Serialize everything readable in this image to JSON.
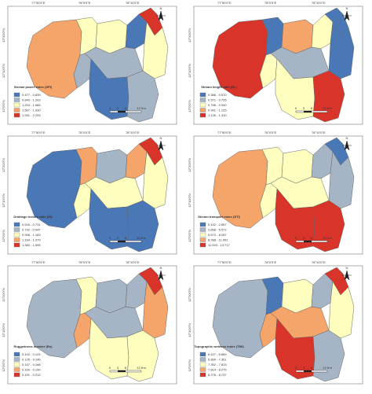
{
  "graticule": {
    "top": [
      "77°50'0\"E",
      "78°0'0\"E",
      "78°10'0\"E"
    ],
    "left": [
      "12°20'0\"N",
      "12°10'0\"N",
      "12°0'0\"N"
    ]
  },
  "scale_bar": [
    "0",
    "3",
    "6",
    "12 Km"
  ],
  "north": "N",
  "panels": [
    {
      "title": "Stream power index (SPI)",
      "legend": [
        "0.477 - 0.839",
        "0.840 - 1.203",
        "1.204 - 1.566",
        "1.567 - 1.930",
        "1.931 - 2.293"
      ],
      "classes": [
        3,
        2,
        1,
        2,
        0,
        4,
        2,
        1,
        0,
        1
      ]
    },
    {
      "title": "Stream length ratio (RL)",
      "legend": [
        "0.386 - 0.570",
        "0.571 - 0.755",
        "0.756 - 0.940",
        "0.941 - 1.125",
        "1.126 - 1.310"
      ],
      "classes": [
        4,
        0,
        2,
        3,
        2,
        0,
        0,
        1,
        2,
        4
      ]
    },
    {
      "title": "Drainage texture ratio (Rt)",
      "legend": [
        "0.516 - 0.731",
        "0.732 - 0.947",
        "0.948 - 1.163",
        "1.164 - 1.379",
        "1.380 - 1.595"
      ],
      "classes": [
        0,
        3,
        2,
        1,
        3,
        4,
        2,
        2,
        0,
        0
      ]
    },
    {
      "title": "Stream transport index (STI)",
      "legend": [
        "0.142 - 2.857",
        "2.858 - 5.572",
        "5.573 - 8.287",
        "8.288 - 11.002",
        "11.003 - 13.717"
      ],
      "classes": [
        3,
        2,
        2,
        2,
        1,
        0,
        1,
        2,
        4,
        4
      ]
    },
    {
      "title": "Ruggedness number (Rn)",
      "legend": [
        "0.102 - 0.124",
        "0.125 - 0.146",
        "0.147 - 0.168",
        "0.169 - 0.190",
        "0.191 - 0.212"
      ],
      "classes": [
        1,
        2,
        3,
        1,
        1,
        4,
        3,
        1,
        2,
        2
      ]
    },
    {
      "title": "Topographic wetness index (TWI)",
      "legend": [
        "6.427 - 6.889",
        "6.890 - 7.351",
        "7.352 - 7.813",
        "7.814 - 8.275",
        "8.276 - 8.737"
      ],
      "classes": [
        1,
        0,
        3,
        2,
        1,
        4,
        2,
        3,
        4,
        1
      ]
    }
  ]
}
